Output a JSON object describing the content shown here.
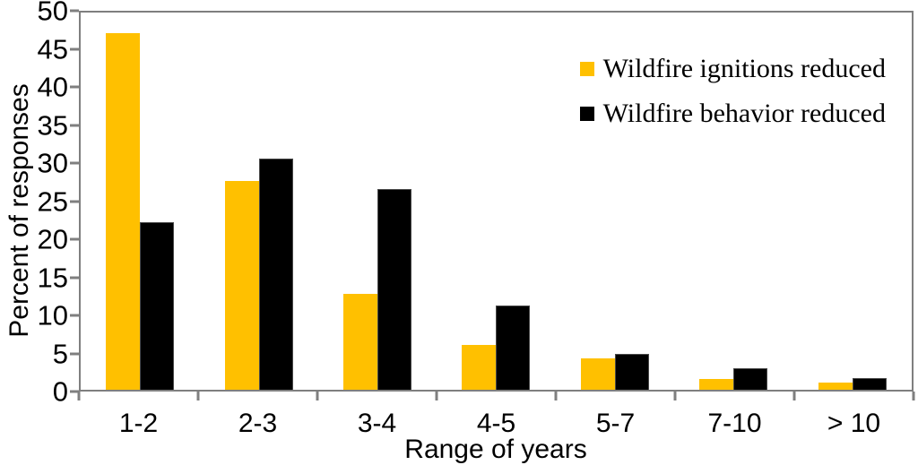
{
  "chart_data": {
    "type": "bar",
    "title": "",
    "xlabel": "Range of years",
    "ylabel": "Percent of responses",
    "categories": [
      "1-2",
      "2-3",
      "3-4",
      "4-5",
      "5-7",
      "7-10",
      "> 10"
    ],
    "series": [
      {
        "name": "Wildfire ignitions reduced",
        "color": "#FFC000",
        "values": [
          47.3,
          27.7,
          12.7,
          5.9,
          4.1,
          1.4,
          1.0
        ]
      },
      {
        "name": "Wildfire behavior reduced",
        "color": "#000000",
        "values": [
          22.2,
          30.7,
          26.6,
          11.2,
          4.8,
          2.9,
          1.6
        ]
      }
    ],
    "ylim": [
      0,
      50
    ],
    "ytick_step": 5,
    "y_tick_labels": [
      "0",
      "5",
      "10",
      "15",
      "20",
      "25",
      "30",
      "35",
      "40",
      "45",
      "50"
    ],
    "grid": false,
    "legend_position": "top-right"
  },
  "colors": {
    "axis": "#7f7f7f",
    "text": "#000000",
    "series_orange": "#FFC000",
    "series_black": "#000000"
  },
  "legend": {
    "item1": "Wildfire ignitions reduced",
    "item2": "Wildfire behavior reduced"
  }
}
